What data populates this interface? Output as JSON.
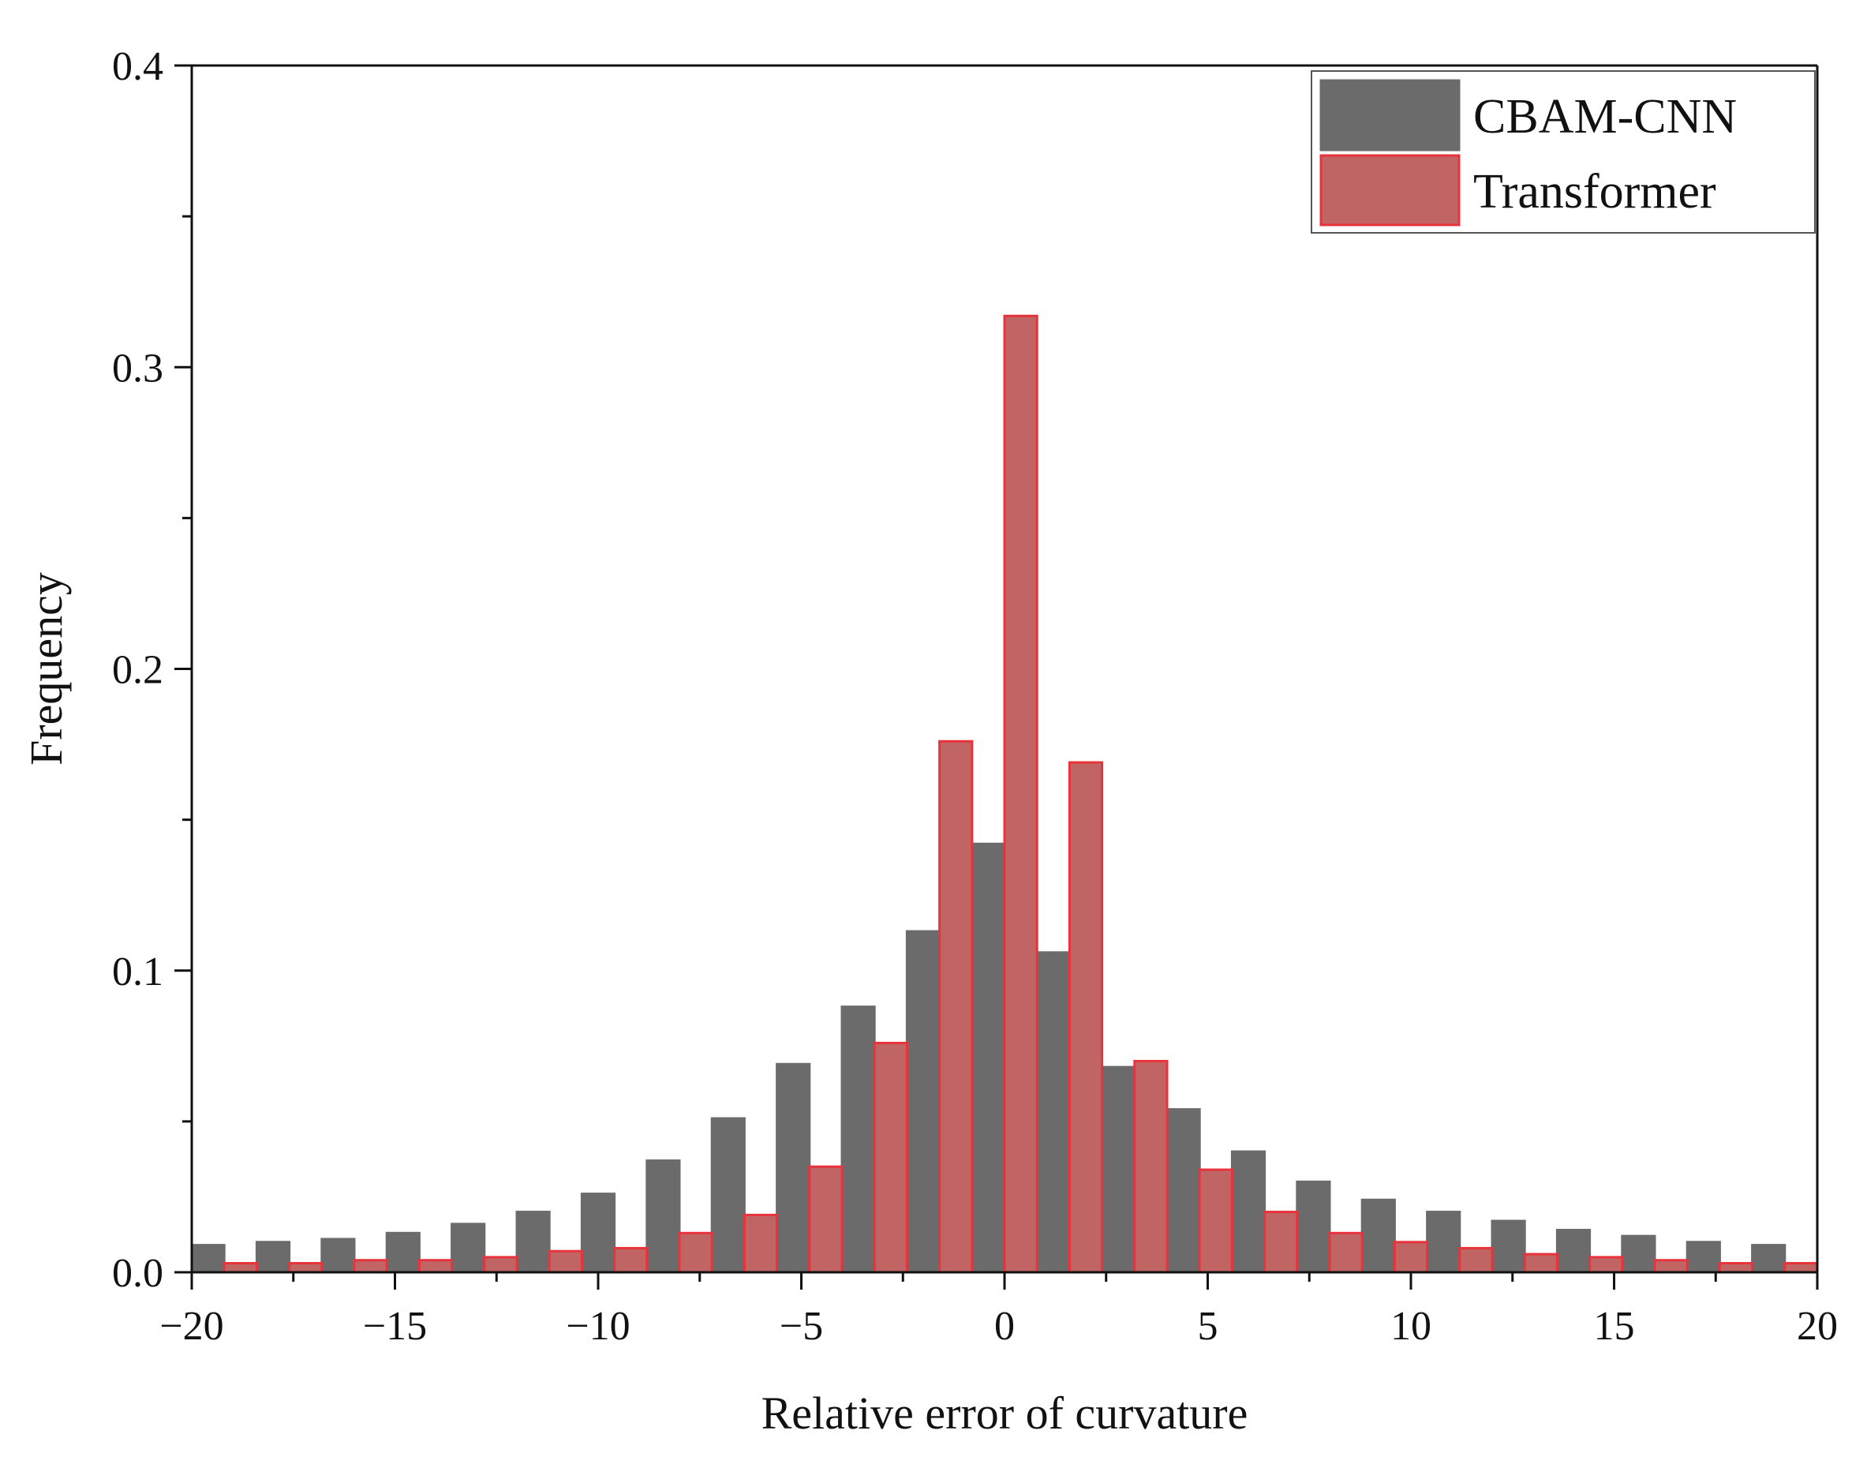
{
  "chart_data": {
    "type": "bar",
    "title": "",
    "xlabel": "Relative error of curvature",
    "ylabel": "Frequency",
    "xlim": [
      -20,
      20
    ],
    "ylim": [
      0,
      0.4
    ],
    "xticks": [
      -20,
      -15,
      -10,
      -5,
      0,
      5,
      10,
      15,
      20
    ],
    "xtick_labels": [
      "−20",
      "−15",
      "−10",
      "−5",
      "0",
      "5",
      "10",
      "15",
      "20"
    ],
    "yticks": [
      0.0,
      0.1,
      0.2,
      0.3,
      0.4
    ],
    "ytick_labels": [
      "0.0",
      "0.1",
      "0.2",
      "0.3",
      "0.4"
    ],
    "bin_width": 1.6,
    "bin_starts": [
      -20,
      -18.4,
      -16.8,
      -15.2,
      -13.6,
      -12,
      -10.4,
      -8.8,
      -7.2,
      -5.6,
      -4,
      -2.4,
      -0.8,
      0.8,
      2.4,
      4,
      5.6,
      7.2,
      8.8,
      10.4,
      12,
      13.6,
      15.2,
      16.8,
      18.4
    ],
    "legend_position": "top-right",
    "series": [
      {
        "name": "CBAM-CNN",
        "color": "#6b6b6b",
        "edge": "#6b6b6b",
        "values": [
          0.009,
          0.01,
          0.011,
          0.013,
          0.016,
          0.02,
          0.026,
          0.037,
          0.051,
          0.069,
          0.088,
          0.113,
          0.142,
          0.106,
          0.068,
          0.054,
          0.04,
          0.03,
          0.024,
          0.02,
          0.017,
          0.014,
          0.012,
          0.01,
          0.009
        ]
      },
      {
        "name": "Transformer",
        "color": "#c06464",
        "edge": "#e8333c",
        "values": [
          0.003,
          0.003,
          0.004,
          0.004,
          0.005,
          0.007,
          0.008,
          0.013,
          0.019,
          0.035,
          0.076,
          0.176,
          0.317,
          0.169,
          0.07,
          0.034,
          0.02,
          0.013,
          0.01,
          0.008,
          0.006,
          0.005,
          0.004,
          0.003,
          0.003
        ]
      }
    ]
  }
}
